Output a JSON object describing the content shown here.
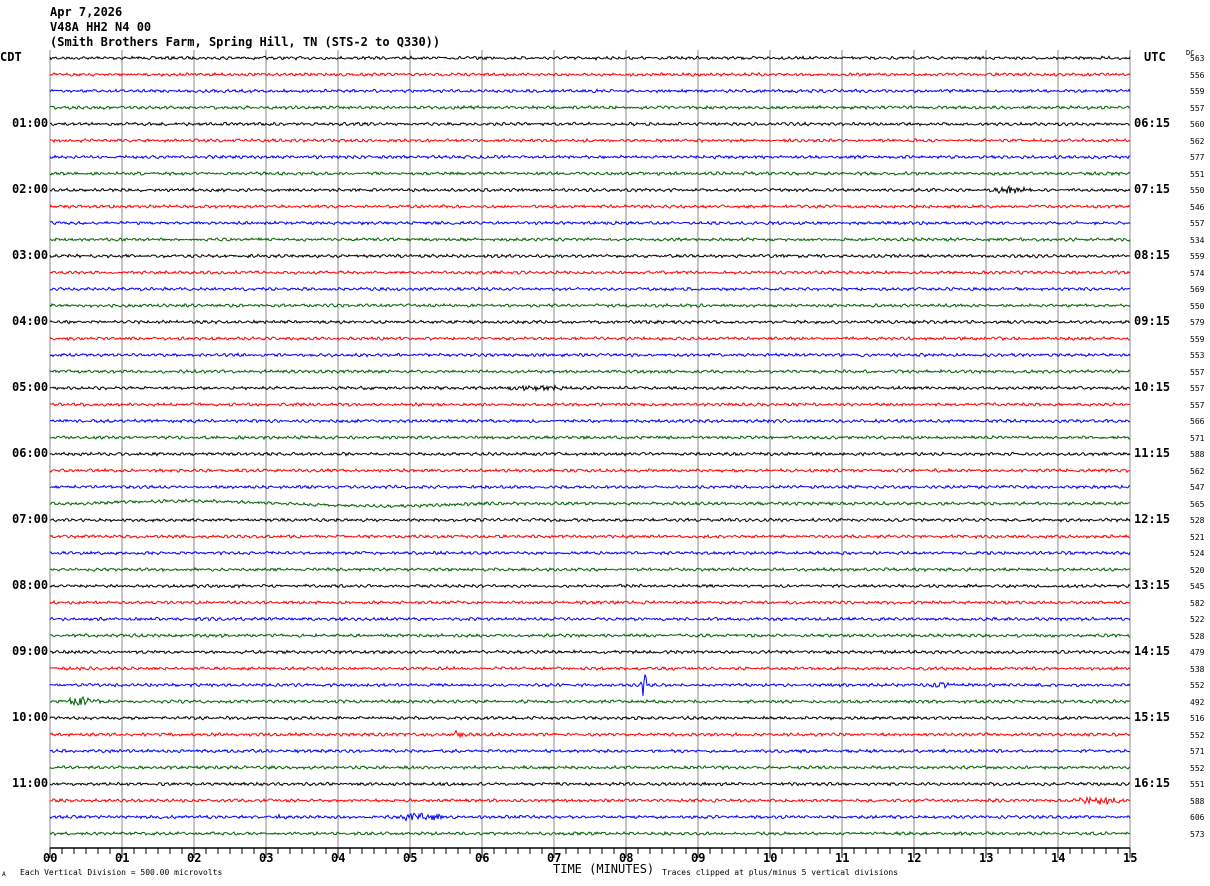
{
  "header": {
    "date": "Apr 7,2026",
    "channel": "V48A HH2 N4 00",
    "station": "(Smith Brothers Farm, Spring Hill, TN (STS-2 to Q330))"
  },
  "left_tz": "CDT",
  "right_tz": "UTC",
  "dc_label": "DC",
  "colors": [
    "#000000",
    "#ff0000",
    "#0000ff",
    "#006400"
  ],
  "chart_data": {
    "type": "line",
    "title": "V48A HH2 N4 00",
    "xlabel": "TIME (MINUTES)",
    "xlim": [
      0,
      15
    ],
    "x_tick_labels": [
      "00",
      "01",
      "02",
      "03",
      "04",
      "05",
      "06",
      "07",
      "08",
      "09",
      "10",
      "11",
      "12",
      "13",
      "14",
      "15"
    ],
    "left_labels": [
      {
        "row": 4,
        "text": "01:00"
      },
      {
        "row": 8,
        "text": "02:00"
      },
      {
        "row": 12,
        "text": "03:00"
      },
      {
        "row": 16,
        "text": "04:00"
      },
      {
        "row": 20,
        "text": "05:00"
      },
      {
        "row": 24,
        "text": "06:00"
      },
      {
        "row": 28,
        "text": "07:00"
      },
      {
        "row": 32,
        "text": "08:00"
      },
      {
        "row": 36,
        "text": "09:00"
      },
      {
        "row": 40,
        "text": "10:00"
      },
      {
        "row": 44,
        "text": "11:00"
      }
    ],
    "right_labels": [
      {
        "row": 4,
        "text": "06:15"
      },
      {
        "row": 8,
        "text": "07:15"
      },
      {
        "row": 12,
        "text": "08:15"
      },
      {
        "row": 16,
        "text": "09:15"
      },
      {
        "row": 20,
        "text": "10:15"
      },
      {
        "row": 24,
        "text": "11:15"
      },
      {
        "row": 28,
        "text": "12:15"
      },
      {
        "row": 32,
        "text": "13:15"
      },
      {
        "row": 36,
        "text": "14:15"
      },
      {
        "row": 40,
        "text": "15:15"
      },
      {
        "row": 44,
        "text": "16:15"
      }
    ],
    "dc_offsets": [
      "563",
      "556",
      "559",
      "557",
      "560",
      "562",
      "577",
      "551",
      "550",
      "546",
      "557",
      "534",
      "559",
      "574",
      "569",
      "550",
      "579",
      "559",
      "553",
      "557",
      "557",
      "557",
      "566",
      "571",
      "588",
      "562",
      "547",
      "565",
      "528",
      "521",
      "524",
      "520",
      "545",
      "582",
      "522",
      "528",
      "479",
      "538",
      "552",
      "492",
      "516",
      "552",
      "571",
      "552",
      "551",
      "588",
      "606",
      "573"
    ],
    "events": [
      {
        "row": 8,
        "start": 12.9,
        "end": 13.7,
        "amp": 3
      },
      {
        "row": 20,
        "start": 6.1,
        "end": 7.3,
        "amp": 2.5
      },
      {
        "row": 27,
        "start": 0.5,
        "end": 6,
        "amp": 0,
        "longperiod": true
      },
      {
        "row": 38,
        "start": 8.2,
        "end": 8.3,
        "amp": 14
      },
      {
        "row": 38,
        "start": 12.2,
        "end": 12.6,
        "amp": 2
      },
      {
        "row": 39,
        "start": 0.1,
        "end": 0.8,
        "amp": 4
      },
      {
        "row": 41,
        "start": 5.5,
        "end": 5.8,
        "amp": 2.5
      },
      {
        "row": 45,
        "start": 14.2,
        "end": 15,
        "amp": 3.5
      },
      {
        "row": 46,
        "start": 3.1,
        "end": 3.3,
        "amp": 3
      },
      {
        "row": 46,
        "start": 4.7,
        "end": 5.6,
        "amp": 3.5
      }
    ]
  },
  "footer": {
    "scale": "Each Vertical Division =  500.00 microvolts",
    "xlabel": "TIME (MINUTES)",
    "clip": "Traces clipped at plus/minus 5 vertical divisions",
    "corner": "A"
  }
}
